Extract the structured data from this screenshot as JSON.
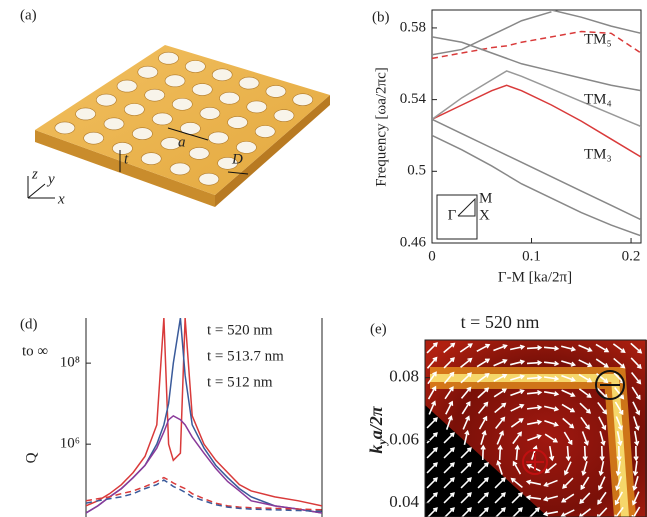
{
  "illustration": {
    "label": "(a)",
    "lattice_constant": "a",
    "thickness": "t",
    "diameter": "D",
    "axis_x": "x",
    "axis_y": "y",
    "axis_z": "z"
  },
  "chart_data": [
    {
      "type": "line",
      "panel_label": "(b)",
      "xlabel": "Γ-M [ka/2π]",
      "ylabel": "Frequency [ωa/2πc]",
      "x": [
        0,
        0.03,
        0.06,
        0.075,
        0.09,
        0.12,
        0.15,
        0.18,
        0.21
      ],
      "xlim": [
        0,
        0.21
      ],
      "ylim": [
        0.46,
        0.59
      ],
      "xticks": [
        0,
        0.1,
        0.2
      ],
      "yticks": [
        0.46,
        0.5,
        0.54,
        0.58
      ],
      "series": [
        {
          "name": "TM₃",
          "color": "#d93a3a",
          "values": [
            0.529,
            0.537,
            0.545,
            0.548,
            0.545,
            0.537,
            0.528,
            0.518,
            0.508
          ]
        },
        {
          "name": "TM₄",
          "color": "#999999",
          "values": [
            0.529,
            0.541,
            0.551,
            0.556,
            0.553,
            0.546,
            0.539,
            0.532,
            0.525
          ]
        },
        {
          "name": "TM₅",
          "color": "#d93a3a",
          "dashed": true,
          "values": [
            0.563,
            0.566,
            0.569,
            0.57,
            0.572,
            0.575,
            0.578,
            0.577,
            0.566
          ]
        },
        {
          "color": "#888888",
          "values": [
            0.529,
            0.521,
            0.513,
            0.509,
            0.505,
            0.497,
            0.489,
            0.481,
            0.473
          ]
        },
        {
          "color": "#888888",
          "values": [
            0.52,
            0.512,
            0.503,
            0.498,
            0.493,
            0.485,
            0.477,
            0.47,
            0.464
          ]
        },
        {
          "color": "#888888",
          "values": [
            0.575,
            0.572,
            0.566,
            0.563,
            0.56,
            0.556,
            0.552,
            0.548,
            0.545
          ]
        },
        {
          "color": "#888888",
          "values": [
            0.565,
            0.568,
            0.576,
            0.58,
            0.584,
            0.589,
            null,
            null,
            null
          ]
        },
        {
          "color": "#888888",
          "values": [
            null,
            null,
            null,
            null,
            null,
            0.59,
            0.586,
            0.581,
            0.577
          ]
        }
      ],
      "inset": {
        "gamma": "Γ",
        "m": "M",
        "x": "X"
      }
    },
    {
      "type": "line",
      "panel_label": "(d)",
      "ylabel": "Q",
      "log_y": true,
      "x": [
        0,
        5,
        10,
        15,
        20,
        25,
        30,
        33,
        35,
        37,
        40,
        42,
        45,
        50,
        55,
        60,
        65,
        70,
        80,
        90,
        100
      ],
      "xlim": [
        0,
        100
      ],
      "ylim": [
        20000,
        1300000000
      ],
      "yticks": [
        {
          "value": 1000000,
          "label": "10⁶"
        },
        {
          "value": 100000000,
          "label": "10⁸"
        }
      ],
      "annotation": "to ∞",
      "series": [
        {
          "name": "t = 520 nm",
          "color": "#d93a3a",
          "values": [
            30000,
            40000,
            60000,
            100000,
            200000,
            500000,
            3000000,
            1300000000,
            1000000,
            400000,
            600000,
            1300000000,
            5000000,
            1000000,
            400000,
            200000,
            100000,
            70000,
            50000,
            40000,
            30000
          ]
        },
        {
          "name": "t = 513.7 nm",
          "color": "#3a5a9a",
          "values": [
            20000,
            30000,
            50000,
            80000,
            150000,
            300000,
            1000000,
            3000000,
            10000000,
            100000000,
            1300000000,
            50000000,
            3000000,
            800000,
            300000,
            150000,
            80000,
            50000,
            30000,
            25000,
            20000
          ]
        },
        {
          "name": "t = 512 nm",
          "color": "#8a3a9a",
          "values": [
            20000,
            30000,
            50000,
            80000,
            150000,
            300000,
            800000,
            2000000,
            4000000,
            5000000,
            4000000,
            3000000,
            1500000,
            600000,
            250000,
            120000,
            70000,
            40000,
            30000,
            25000,
            20000
          ]
        },
        {
          "color": "#d93a3a",
          "dashed": true,
          "values": [
            40000,
            45000,
            50000,
            60000,
            70000,
            90000,
            120000,
            150000,
            130000,
            110000,
            90000,
            80000,
            60000,
            45000,
            35000,
            30000,
            28000,
            27000,
            26000,
            25000,
            24000
          ]
        },
        {
          "color": "#3a5a9a",
          "dashed": true,
          "values": [
            35000,
            40000,
            45000,
            50000,
            60000,
            80000,
            100000,
            130000,
            110000,
            90000,
            75000,
            65000,
            50000,
            40000,
            32000,
            28000,
            26000,
            25000,
            24000,
            23000,
            22000
          ]
        }
      ]
    },
    {
      "type": "vector_field",
      "panel_label": "(e)",
      "title": "t = 520 nm",
      "ylabel": [
        "k",
        "y",
        "a/2π"
      ],
      "ylim": [
        0.0356,
        0.092
      ],
      "yticks": [
        0.04,
        0.06,
        0.08
      ]
    }
  ]
}
